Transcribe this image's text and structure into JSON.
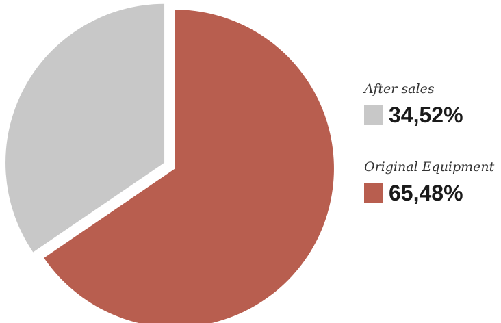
{
  "chart_data": {
    "type": "pie",
    "slices": [
      {
        "name": "After sales",
        "label": "34,52%",
        "value": 34.52,
        "color": "#c8c8c8"
      },
      {
        "name": "Original Equipment",
        "label": "65,48%",
        "value": 65.48,
        "color": "#b85e4f"
      }
    ],
    "legend_position": "right",
    "start_angle": "top"
  }
}
